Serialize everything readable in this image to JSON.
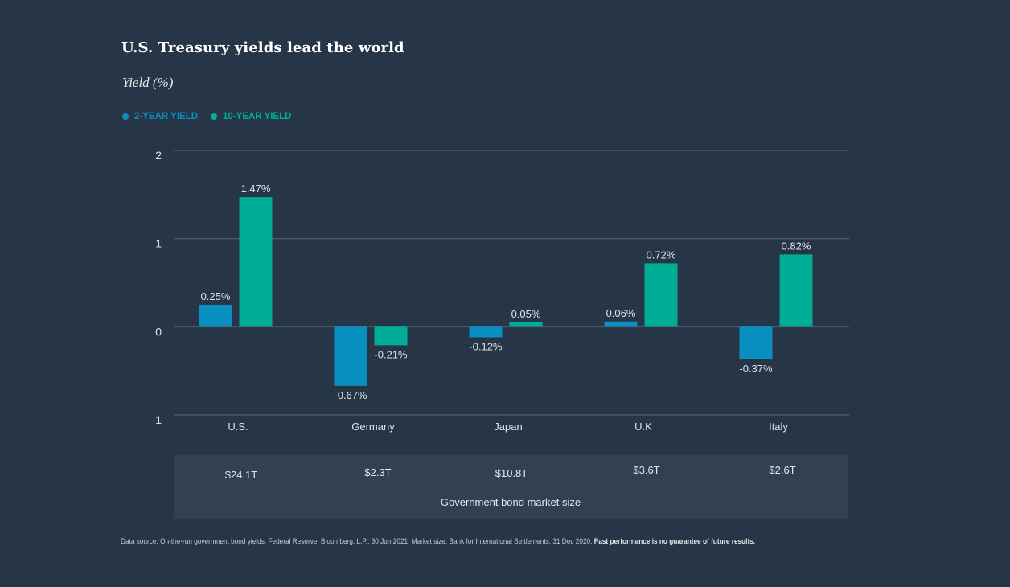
{
  "chart_data": {
    "type": "bar",
    "title": "U.S. Treasury yields lead the world",
    "ylabel": "Yield (%)",
    "xlabel": "",
    "ylim": [
      -1,
      2
    ],
    "yticks": [
      "2",
      "1",
      "0",
      "-1"
    ],
    "ytick_values": [
      2,
      1,
      0,
      -1
    ],
    "grid": true,
    "legend_position": "top-left",
    "categories": [
      "U.S.",
      "Germany",
      "Japan",
      "U.K",
      "Italy"
    ],
    "series": [
      {
        "name": "2-YEAR YIELD",
        "color": "#0a8fc2",
        "values": [
          0.25,
          -0.67,
          -0.12,
          0.06,
          -0.37
        ],
        "labels": [
          "0.25%",
          "-0.67%",
          "-0.12%",
          "0.06%",
          "-0.37%"
        ]
      },
      {
        "name": "10-YEAR YIELD",
        "color": "#00ad96",
        "values": [
          1.47,
          -0.21,
          0.05,
          0.72,
          0.82
        ],
        "labels": [
          "1.47%",
          "-0.21%",
          "0.05%",
          "0.72%",
          "0.82%"
        ]
      }
    ]
  },
  "market_size": {
    "values": [
      "$24.1T",
      "$2.3T",
      "$10.8T",
      "$3.6T",
      "$2.6T"
    ],
    "caption": "Government bond market size"
  },
  "footnote": {
    "source": "Data source: On-the-run government bond yields: Federal Reserve, Bloomberg, L.P., 30 Jun 2021. Market size: Bank for International Settlements, 31 Dec 2020. ",
    "disclaimer": "Past performance is no guarantee of future results."
  },
  "colors": {
    "background": "#263646",
    "gridline": "#4a5866",
    "text": "#dfe3e7",
    "two_year": "#0a8fc2",
    "ten_year": "#00ad96"
  }
}
